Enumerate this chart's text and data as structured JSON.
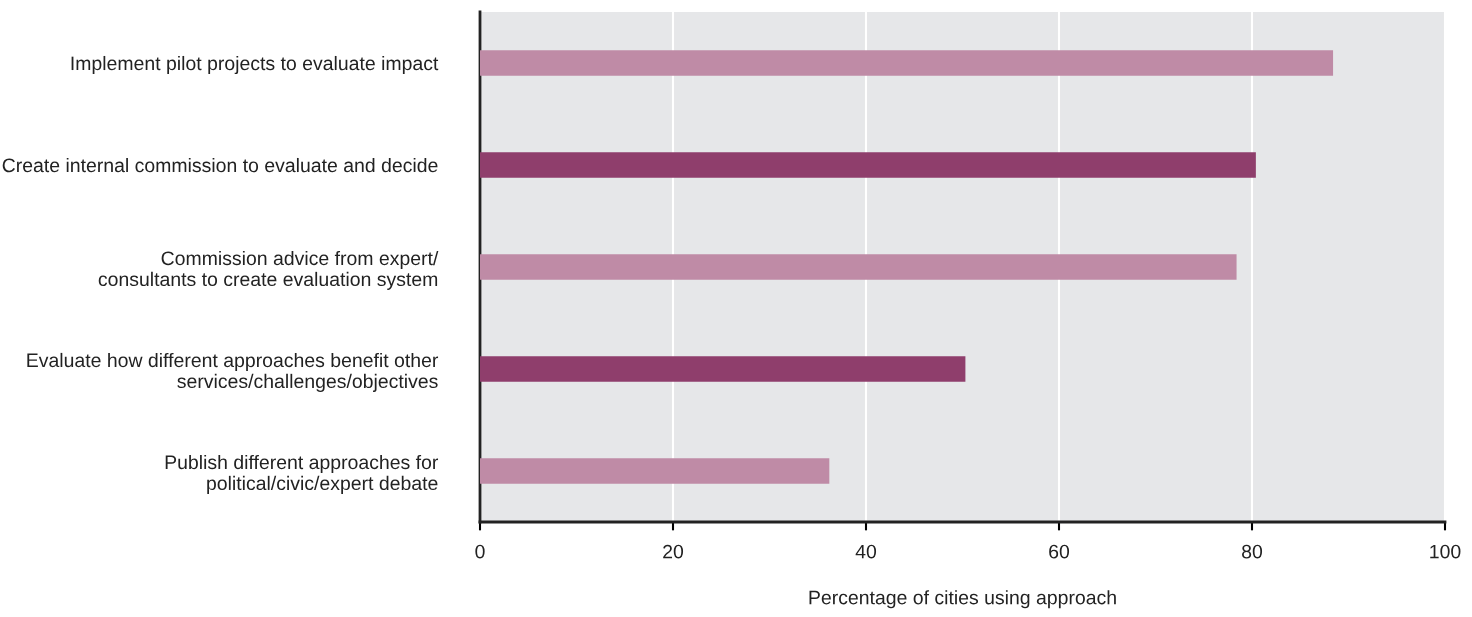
{
  "chart_data": {
    "type": "bar",
    "orientation": "horizontal",
    "xlabel": "Percentage of cities using approach",
    "categories": [
      "Implement pilot projects to evaluate impact",
      "Create internal commission to evaluate and decide",
      "Commission advice from expert/\nconsultants to create evaluation system",
      "Evaluate how different approaches benefit other\nservices/challenges/objectives",
      "Publish different approaches for\npolitical/civic/expert debate"
    ],
    "values": [
      88.4,
      80.4,
      78.4,
      50.3,
      36.2
    ],
    "colors": [
      "#bf8ba6",
      "#8f3e6c",
      "#bf8ba6",
      "#8f3e6c",
      "#bf8ba6"
    ],
    "xlim": [
      0,
      100
    ],
    "xticks": [
      0,
      20,
      40,
      60,
      80,
      100
    ],
    "grid": "x"
  }
}
